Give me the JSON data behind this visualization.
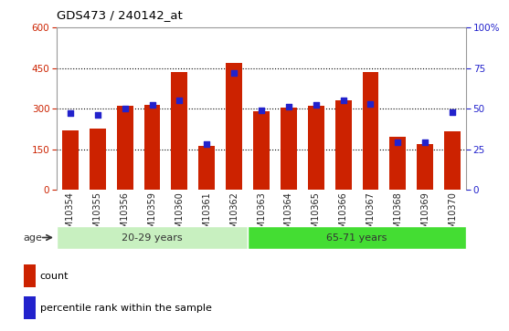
{
  "title": "GDS473 / 240142_at",
  "samples": [
    "GSM10354",
    "GSM10355",
    "GSM10356",
    "GSM10359",
    "GSM10360",
    "GSM10361",
    "GSM10362",
    "GSM10363",
    "GSM10364",
    "GSM10365",
    "GSM10366",
    "GSM10367",
    "GSM10368",
    "GSM10369",
    "GSM10370"
  ],
  "counts": [
    220,
    225,
    310,
    315,
    435,
    163,
    470,
    290,
    305,
    310,
    330,
    435,
    195,
    170,
    215
  ],
  "percentile_ranks": [
    47,
    46,
    50,
    52,
    55,
    28,
    72,
    49,
    51,
    52,
    55,
    53,
    29,
    29,
    48
  ],
  "group1_label": "20-29 years",
  "group2_label": "65-71 years",
  "group1_count": 7,
  "group2_count": 8,
  "age_label": "age",
  "legend_count": "count",
  "legend_percentile": "percentile rank within the sample",
  "ylim_left": [
    0,
    600
  ],
  "ylim_right": [
    0,
    100
  ],
  "yticks_left": [
    0,
    150,
    300,
    450,
    600
  ],
  "yticks_right": [
    0,
    25,
    50,
    75,
    100
  ],
  "bar_color": "#cc2200",
  "marker_color": "#2222cc",
  "group1_bg": "#c8f0c0",
  "group2_bg": "#44dd33",
  "xticklabel_bg": "#d0d0d0",
  "plot_bg": "#ffffff",
  "title_color": "#000000",
  "left_tick_color": "#cc2200",
  "right_tick_color": "#2222cc",
  "grid_color": "#000000",
  "border_color": "#999999"
}
